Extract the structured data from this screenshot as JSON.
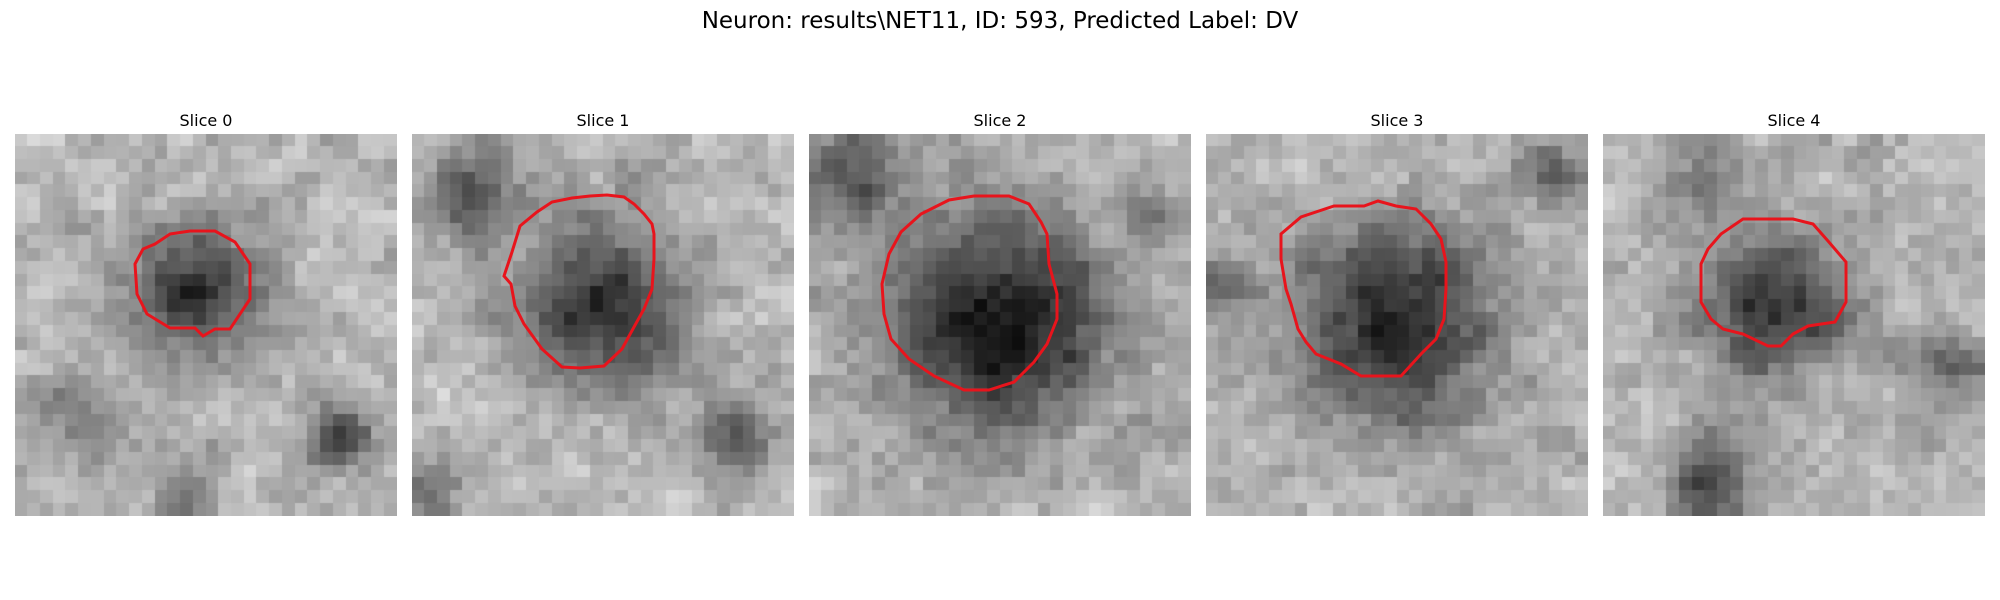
{
  "figure": {
    "title": "Neuron: results\\NET11, ID: 593, Predicted Label: DV"
  },
  "colors": {
    "contour": "#e8141c",
    "background": "#ffffff"
  },
  "colormap": "gray",
  "panels": [
    {
      "title": "Slice 0"
    },
    {
      "title": "Slice 1"
    },
    {
      "title": "Slice 2"
    },
    {
      "title": "Slice 3"
    },
    {
      "title": "Slice 4"
    }
  ]
}
